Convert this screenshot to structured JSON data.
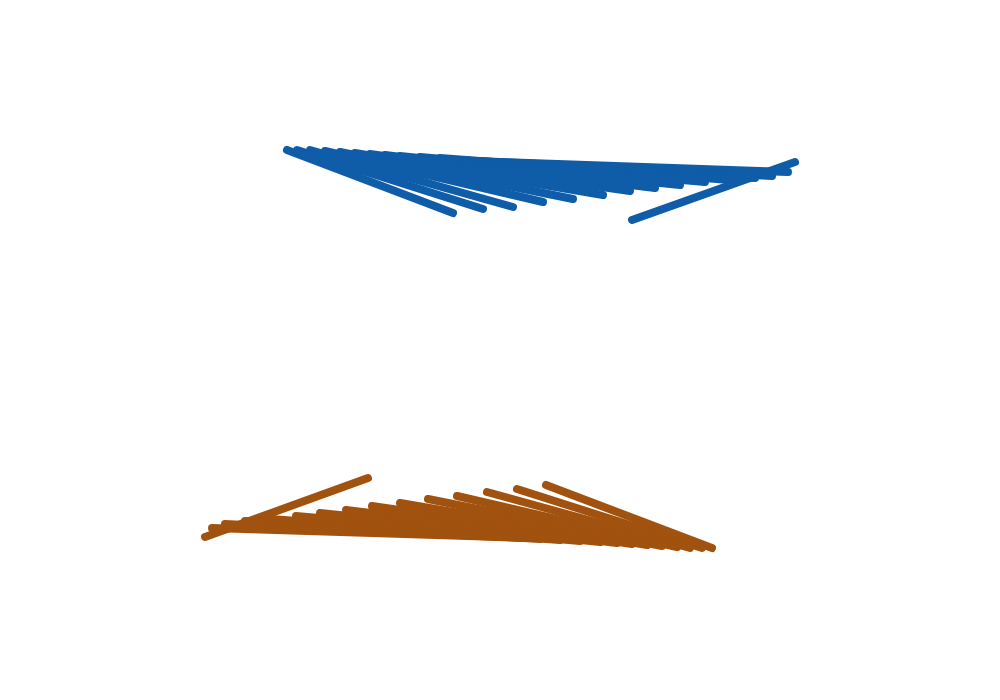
{
  "chart_data": {
    "type": "line_segments",
    "xlim": [
      0,
      1000
    ],
    "ylim": [
      0,
      700
    ],
    "tick_labels": false,
    "grid": false,
    "series": [
      {
        "color": "#0f5ca8",
        "segments": [
          [
            [
              287,
              550
            ],
            [
              453,
              487
            ]
          ],
          [
            [
              297,
              550
            ],
            [
              483,
              491
            ]
          ],
          [
            [
              310,
              550
            ],
            [
              513,
              493
            ]
          ],
          [
            [
              325,
              549
            ],
            [
              543,
              498
            ]
          ],
          [
            [
              340,
              548
            ],
            [
              573,
              501
            ]
          ],
          [
            [
              355,
              547
            ],
            [
              603,
              505
            ]
          ],
          [
            [
              370,
              546
            ],
            [
              630,
              509
            ]
          ],
          [
            [
              385,
              545
            ],
            [
              655,
              512
            ]
          ],
          [
            [
              400,
              544
            ],
            [
              680,
              515
            ]
          ],
          [
            [
              420,
              543
            ],
            [
              705,
              518
            ]
          ],
          [
            [
              440,
              542
            ],
            [
              730,
              520
            ]
          ],
          [
            [
              460,
              540
            ],
            [
              755,
              522
            ]
          ],
          [
            [
              480,
              539
            ],
            [
              772,
              524
            ]
          ],
          [
            [
              500,
              538
            ],
            [
              788,
              528
            ]
          ],
          [
            [
              632,
              480
            ],
            [
              795,
              538
            ]
          ]
        ]
      },
      {
        "color": "#a0520e",
        "segments": [
          [
            [
              712,
              152
            ],
            [
              546,
              215
            ]
          ],
          [
            [
              702,
              152
            ],
            [
              517,
              211
            ]
          ],
          [
            [
              690,
              152
            ],
            [
              487,
              208
            ]
          ],
          [
            [
              677,
              153
            ],
            [
              457,
              204
            ]
          ],
          [
            [
              662,
              154
            ],
            [
              428,
              201
            ]
          ],
          [
            [
              647,
              155
            ],
            [
              400,
              197
            ]
          ],
          [
            [
              632,
              156
            ],
            [
              372,
              194
            ]
          ],
          [
            [
              617,
              157
            ],
            [
              346,
              190
            ]
          ],
          [
            [
              600,
              158
            ],
            [
              320,
              187
            ]
          ],
          [
            [
              580,
              159
            ],
            [
              296,
              184
            ]
          ],
          [
            [
              560,
              160
            ],
            [
              270,
              181
            ]
          ],
          [
            [
              540,
              161
            ],
            [
              245,
              179
            ]
          ],
          [
            [
              520,
              162
            ],
            [
              225,
              176
            ]
          ],
          [
            [
              500,
              163
            ],
            [
              212,
              172
            ]
          ],
          [
            [
              205,
              163
            ],
            [
              368,
              222
            ]
          ]
        ]
      }
    ]
  }
}
